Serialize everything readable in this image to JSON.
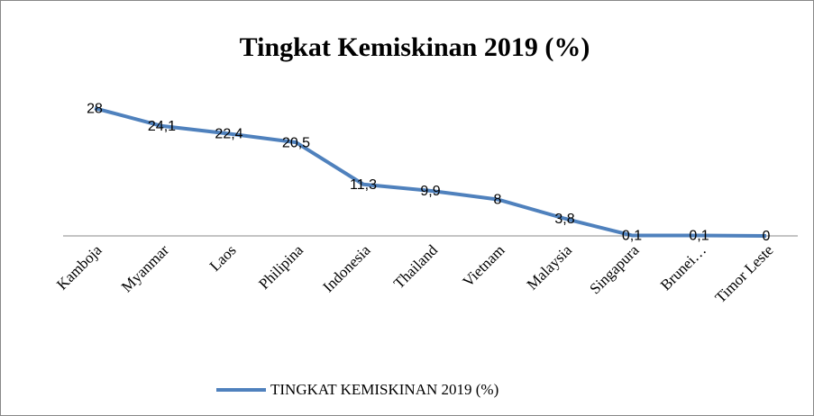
{
  "chart_data": {
    "type": "line",
    "title": "Tingkat Kemiskinan 2019 (%)",
    "categories": [
      "Kamboja",
      "Myanmar",
      "Laos",
      "Philipina",
      "Indonesia",
      "Thailand",
      "Vietnam",
      "Malaysia",
      "Singapura",
      "Brunei…",
      "Timor Leste"
    ],
    "series": [
      {
        "name": "TINGKAT KEMISKINAN 2019 (%)",
        "color": "#4f81bd",
        "values": [
          28,
          24.1,
          22.4,
          20.5,
          11.3,
          9.9,
          8,
          3.8,
          0.1,
          0.1,
          0
        ],
        "value_labels": [
          "28",
          "24,1",
          "22,4",
          "20,5",
          "11,3",
          "9,9",
          "8",
          "3,8",
          "0,1",
          "0,1",
          "0"
        ]
      }
    ],
    "ylim": [
      0,
      30
    ]
  }
}
